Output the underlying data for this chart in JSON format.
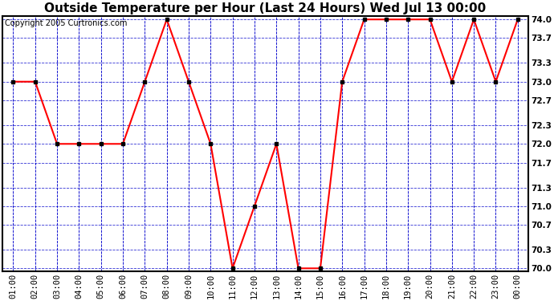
{
  "title": "Outside Temperature per Hour (Last 24 Hours) Wed Jul 13 00:00",
  "copyright": "Copyright 2005 Curtronics.com",
  "x_labels": [
    "01:00",
    "02:00",
    "03:00",
    "04:00",
    "05:00",
    "06:00",
    "07:00",
    "08:00",
    "09:00",
    "10:00",
    "11:00",
    "12:00",
    "13:00",
    "14:00",
    "15:00",
    "16:00",
    "17:00",
    "18:00",
    "19:00",
    "20:00",
    "21:00",
    "22:00",
    "23:00",
    "00:00"
  ],
  "y_values": [
    73.0,
    73.0,
    72.0,
    72.0,
    72.0,
    72.0,
    73.0,
    74.0,
    73.0,
    72.0,
    70.0,
    71.0,
    72.0,
    70.0,
    70.0,
    73.0,
    74.0,
    74.0,
    74.0,
    74.0,
    73.0,
    74.0,
    73.0,
    74.0
  ],
  "y_ticks": [
    70.0,
    70.3,
    70.7,
    71.0,
    71.3,
    71.7,
    72.0,
    72.3,
    72.7,
    73.0,
    73.3,
    73.7,
    74.0
  ],
  "y_min": 69.95,
  "y_max": 74.05,
  "line_color": "red",
  "marker": "s",
  "marker_color": "black",
  "marker_size": 3,
  "grid_color": "#0000cc",
  "fig_bg_color": "#ffffff",
  "plot_bg_color": "#ffffff",
  "title_fontsize": 11,
  "copyright_fontsize": 7,
  "tick_fontsize": 7.5
}
